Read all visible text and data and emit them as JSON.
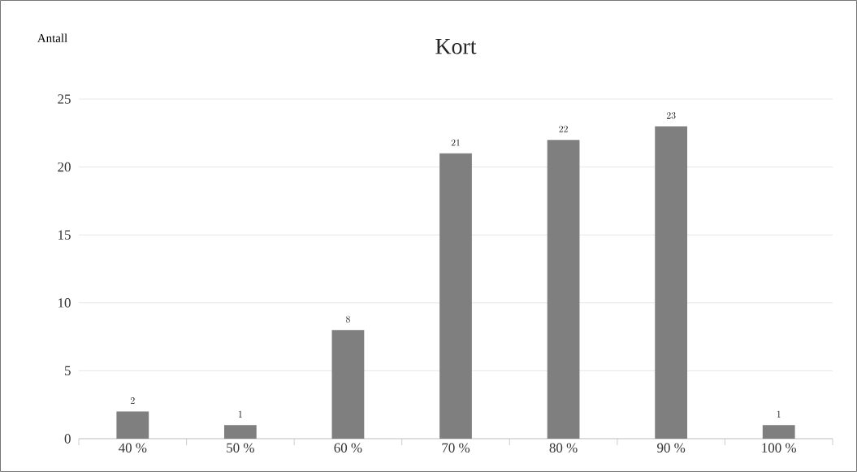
{
  "chart_data": {
    "type": "bar",
    "title": "Kort",
    "ylabel": "Antall",
    "categories": [
      "40 %",
      "50 %",
      "60 %",
      "70 %",
      "80 %",
      "90 %",
      "100 %"
    ],
    "values": [
      2,
      1,
      8,
      21,
      22,
      23,
      1
    ],
    "color": "#7f7f7f",
    "ylim": [
      0,
      25
    ],
    "yticks": [
      0,
      5,
      10,
      15,
      20,
      25
    ],
    "grid": "y",
    "data_labels": true
  }
}
